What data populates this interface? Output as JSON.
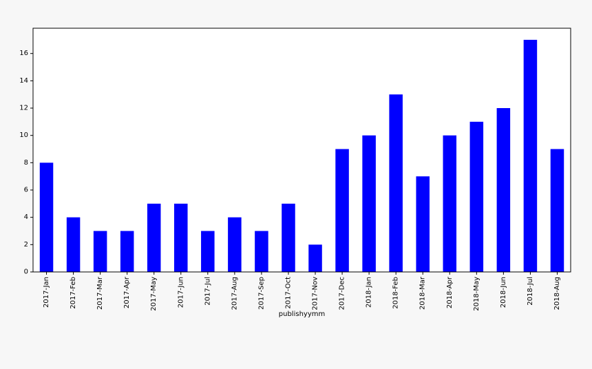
{
  "chart_data": {
    "type": "bar",
    "title": "",
    "xlabel": "publishyymm",
    "ylabel": "",
    "categories": [
      "2017-Jan",
      "2017-Feb",
      "2017-Mar",
      "2017-Apr",
      "2017-May",
      "2017-Jun",
      "2017-Jul",
      "2017-Aug",
      "2017-Sep",
      "2017-Oct",
      "2017-Nov",
      "2017-Dec",
      "2018-Jan",
      "2018-Feb",
      "2018-Mar",
      "2018-Apr",
      "2018-May",
      "2018-Jun",
      "2018-Jul",
      "2018-Aug"
    ],
    "values": [
      8,
      4,
      3,
      3,
      5,
      5,
      3,
      4,
      3,
      5,
      2,
      9,
      10,
      13,
      7,
      10,
      11,
      12,
      17,
      9
    ],
    "yticks": [
      0,
      2,
      4,
      6,
      8,
      10,
      12,
      14,
      16
    ],
    "ylim": [
      0,
      17.85
    ],
    "grid": false,
    "legend": "none",
    "colors": {
      "bar": "#0000ff",
      "plot_bg": "#ffffff",
      "page_bg": "#f7f7f7"
    }
  }
}
